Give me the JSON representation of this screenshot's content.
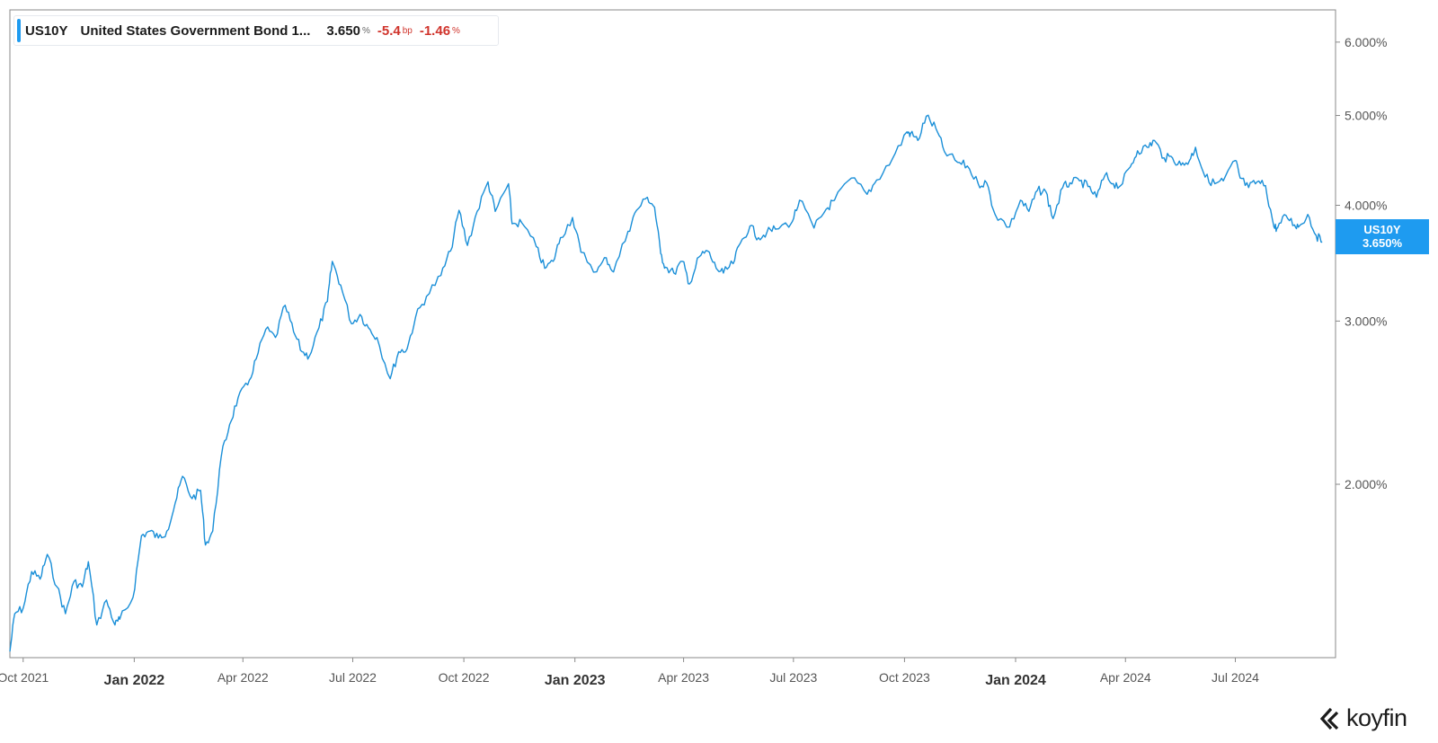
{
  "legend": {
    "ticker": "US10Y",
    "name": "United States Government Bond 1...",
    "last_value": "3.650",
    "last_value_unit": "%",
    "change": "-5.4",
    "change_unit": "bp",
    "pct_change": "-1.46",
    "pct_change_unit": "%"
  },
  "last_label": {
    "ticker": "US10Y",
    "value": "3.650%"
  },
  "logo": {
    "word": "koyfin"
  },
  "colors": {
    "line": "#1a8fd8",
    "label_bg": "#1e9bf0",
    "negative": "#d0342c"
  },
  "chart_data": {
    "type": "line",
    "title": "",
    "xlabel": "",
    "ylabel": "",
    "y_scale": "log",
    "ylim": [
      1.3,
      6.5
    ],
    "y_ticks": [
      {
        "value": 2.0,
        "label": "2.000%"
      },
      {
        "value": 3.0,
        "label": "3.000%"
      },
      {
        "value": 4.0,
        "label": "4.000%"
      },
      {
        "value": 5.0,
        "label": "5.000%"
      },
      {
        "value": 6.0,
        "label": "6.000%"
      }
    ],
    "xlim": [
      "2021-09-20",
      "2024-09-22"
    ],
    "x_ticks": [
      {
        "date": "2021-10-01",
        "label": "Oct 2021",
        "bold": false
      },
      {
        "date": "2022-01-01",
        "label": "Jan 2022",
        "bold": true
      },
      {
        "date": "2022-04-01",
        "label": "Apr 2022",
        "bold": false
      },
      {
        "date": "2022-07-01",
        "label": "Jul 2022",
        "bold": false
      },
      {
        "date": "2022-10-01",
        "label": "Oct 2022",
        "bold": false
      },
      {
        "date": "2023-01-01",
        "label": "Jan 2023",
        "bold": true
      },
      {
        "date": "2023-04-01",
        "label": "Apr 2023",
        "bold": false
      },
      {
        "date": "2023-07-01",
        "label": "Jul 2023",
        "bold": false
      },
      {
        "date": "2023-10-01",
        "label": "Oct 2023",
        "bold": false
      },
      {
        "date": "2024-01-01",
        "label": "Jan 2024",
        "bold": true
      },
      {
        "date": "2024-04-01",
        "label": "Apr 2024",
        "bold": false
      },
      {
        "date": "2024-07-01",
        "label": "Jul 2024",
        "bold": false
      }
    ],
    "grid": false,
    "series": [
      {
        "name": "US10Y",
        "points": [
          [
            "2021-09-20",
            1.32
          ],
          [
            "2021-09-24",
            1.45
          ],
          [
            "2021-10-01",
            1.47
          ],
          [
            "2021-10-08",
            1.61
          ],
          [
            "2021-10-15",
            1.58
          ],
          [
            "2021-10-21",
            1.68
          ],
          [
            "2021-10-29",
            1.55
          ],
          [
            "2021-11-05",
            1.45
          ],
          [
            "2021-11-12",
            1.57
          ],
          [
            "2021-11-19",
            1.55
          ],
          [
            "2021-11-24",
            1.65
          ],
          [
            "2021-12-01",
            1.41
          ],
          [
            "2021-12-09",
            1.5
          ],
          [
            "2021-12-16",
            1.41
          ],
          [
            "2021-12-20",
            1.43
          ],
          [
            "2021-12-31",
            1.51
          ],
          [
            "2022-01-07",
            1.76
          ],
          [
            "2022-01-14",
            1.78
          ],
          [
            "2022-01-21",
            1.75
          ],
          [
            "2022-01-28",
            1.78
          ],
          [
            "2022-02-04",
            1.91
          ],
          [
            "2022-02-10",
            2.04
          ],
          [
            "2022-02-18",
            1.93
          ],
          [
            "2022-02-25",
            1.97
          ],
          [
            "2022-03-01",
            1.72
          ],
          [
            "2022-03-07",
            1.78
          ],
          [
            "2022-03-14",
            2.14
          ],
          [
            "2022-03-21",
            2.32
          ],
          [
            "2022-03-28",
            2.48
          ],
          [
            "2022-04-05",
            2.56
          ],
          [
            "2022-04-12",
            2.73
          ],
          [
            "2022-04-20",
            2.94
          ],
          [
            "2022-04-28",
            2.88
          ],
          [
            "2022-05-06",
            3.12
          ],
          [
            "2022-05-13",
            2.92
          ],
          [
            "2022-05-20",
            2.78
          ],
          [
            "2022-05-26",
            2.75
          ],
          [
            "2022-06-03",
            2.95
          ],
          [
            "2022-06-10",
            3.15
          ],
          [
            "2022-06-14",
            3.48
          ],
          [
            "2022-06-21",
            3.28
          ],
          [
            "2022-06-30",
            2.98
          ],
          [
            "2022-07-07",
            3.05
          ],
          [
            "2022-07-14",
            2.95
          ],
          [
            "2022-07-21",
            2.88
          ],
          [
            "2022-08-01",
            2.6
          ],
          [
            "2022-08-08",
            2.78
          ],
          [
            "2022-08-15",
            2.8
          ],
          [
            "2022-08-22",
            3.03
          ],
          [
            "2022-08-31",
            3.19
          ],
          [
            "2022-09-12",
            3.36
          ],
          [
            "2022-09-20",
            3.57
          ],
          [
            "2022-09-27",
            3.95
          ],
          [
            "2022-10-04",
            3.62
          ],
          [
            "2022-10-12",
            3.94
          ],
          [
            "2022-10-21",
            4.24
          ],
          [
            "2022-10-27",
            3.94
          ],
          [
            "2022-11-07",
            4.22
          ],
          [
            "2022-11-10",
            3.82
          ],
          [
            "2022-11-18",
            3.83
          ],
          [
            "2022-11-30",
            3.61
          ],
          [
            "2022-12-07",
            3.42
          ],
          [
            "2022-12-14",
            3.48
          ],
          [
            "2022-12-20",
            3.69
          ],
          [
            "2022-12-30",
            3.88
          ],
          [
            "2023-01-06",
            3.56
          ],
          [
            "2023-01-19",
            3.39
          ],
          [
            "2023-01-27",
            3.51
          ],
          [
            "2023-02-02",
            3.39
          ],
          [
            "2023-02-14",
            3.75
          ],
          [
            "2023-02-21",
            3.95
          ],
          [
            "2023-03-02",
            4.08
          ],
          [
            "2023-03-08",
            3.98
          ],
          [
            "2023-03-13",
            3.55
          ],
          [
            "2023-03-17",
            3.43
          ],
          [
            "2023-03-24",
            3.38
          ],
          [
            "2023-03-31",
            3.48
          ],
          [
            "2023-04-06",
            3.29
          ],
          [
            "2023-04-14",
            3.52
          ],
          [
            "2023-04-21",
            3.57
          ],
          [
            "2023-04-28",
            3.42
          ],
          [
            "2023-05-04",
            3.38
          ],
          [
            "2023-05-12",
            3.46
          ],
          [
            "2023-05-18",
            3.64
          ],
          [
            "2023-05-26",
            3.8
          ],
          [
            "2023-06-02",
            3.69
          ],
          [
            "2023-06-09",
            3.74
          ],
          [
            "2023-06-16",
            3.77
          ],
          [
            "2023-06-30",
            3.84
          ],
          [
            "2023-07-06",
            4.05
          ],
          [
            "2023-07-18",
            3.78
          ],
          [
            "2023-07-28",
            3.96
          ],
          [
            "2023-08-04",
            4.05
          ],
          [
            "2023-08-18",
            4.28
          ],
          [
            "2023-08-31",
            4.11
          ],
          [
            "2023-09-08",
            4.26
          ],
          [
            "2023-09-21",
            4.49
          ],
          [
            "2023-10-03",
            4.8
          ],
          [
            "2023-10-06",
            4.78
          ],
          [
            "2023-10-12",
            4.7
          ],
          [
            "2023-10-19",
            4.99
          ],
          [
            "2023-10-27",
            4.84
          ],
          [
            "2023-11-03",
            4.57
          ],
          [
            "2023-11-14",
            4.45
          ],
          [
            "2023-11-22",
            4.41
          ],
          [
            "2023-12-01",
            4.22
          ],
          [
            "2023-12-08",
            4.23
          ],
          [
            "2023-12-15",
            3.91
          ],
          [
            "2023-12-27",
            3.79
          ],
          [
            "2024-01-05",
            4.05
          ],
          [
            "2024-01-12",
            3.94
          ],
          [
            "2024-01-19",
            4.15
          ],
          [
            "2024-01-26",
            4.14
          ],
          [
            "2024-02-01",
            3.87
          ],
          [
            "2024-02-09",
            4.18
          ],
          [
            "2024-02-15",
            4.23
          ],
          [
            "2024-02-23",
            4.25
          ],
          [
            "2024-03-01",
            4.19
          ],
          [
            "2024-03-08",
            4.08
          ],
          [
            "2024-03-15",
            4.31
          ],
          [
            "2024-03-22",
            4.22
          ],
          [
            "2024-03-28",
            4.2
          ],
          [
            "2024-04-05",
            4.4
          ],
          [
            "2024-04-11",
            4.58
          ],
          [
            "2024-04-19",
            4.62
          ],
          [
            "2024-04-25",
            4.7
          ],
          [
            "2024-05-03",
            4.5
          ],
          [
            "2024-05-10",
            4.5
          ],
          [
            "2024-05-17",
            4.42
          ],
          [
            "2024-05-24",
            4.47
          ],
          [
            "2024-05-29",
            4.62
          ],
          [
            "2024-06-06",
            4.29
          ],
          [
            "2024-06-14",
            4.22
          ],
          [
            "2024-06-21",
            4.25
          ],
          [
            "2024-07-01",
            4.47
          ],
          [
            "2024-07-05",
            4.28
          ],
          [
            "2024-07-12",
            4.18
          ],
          [
            "2024-07-19",
            4.24
          ],
          [
            "2024-07-26",
            4.2
          ],
          [
            "2024-08-02",
            3.79
          ],
          [
            "2024-08-05",
            3.78
          ],
          [
            "2024-08-12",
            3.9
          ],
          [
            "2024-08-19",
            3.81
          ],
          [
            "2024-08-23",
            3.8
          ],
          [
            "2024-08-30",
            3.91
          ],
          [
            "2024-09-06",
            3.71
          ],
          [
            "2024-09-11",
            3.65
          ]
        ]
      }
    ]
  }
}
